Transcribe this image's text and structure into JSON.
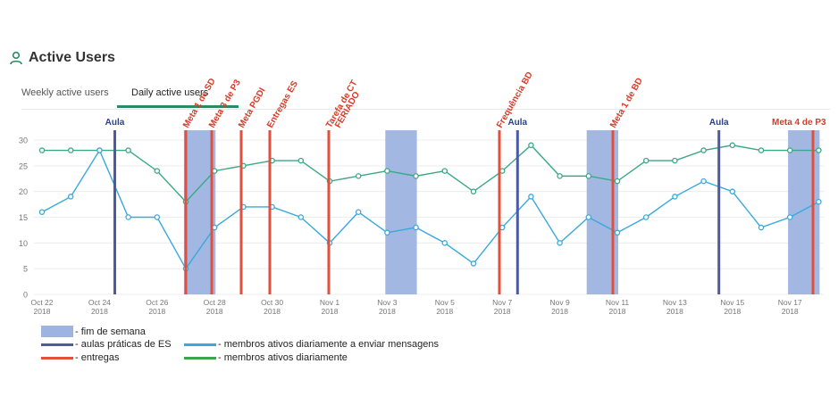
{
  "header": {
    "title": "Active Users",
    "icon": "user-icon"
  },
  "tabs": [
    {
      "label": "Weekly active users",
      "active": false
    },
    {
      "label": "Daily active users",
      "active": true
    }
  ],
  "colors": {
    "green": "#3aa886",
    "blue": "#39a8dc",
    "weekend": "#9db4e2",
    "aulas": "#4c5aa3",
    "entregas": "#e0503c",
    "aula_text": "#2b3f8c",
    "entrega_text": "#d93a28"
  },
  "legend": [
    {
      "label": "- fim de semana",
      "kind": "weekend"
    },
    {
      "label": "- aulas práticas de ES",
      "kind": "aulas"
    },
    {
      "label": "- entregas",
      "kind": "entregas"
    },
    {
      "label": "- membros ativos diariamente a enviar mensagens",
      "kind": "blue"
    },
    {
      "label": "- membros ativos diariamente",
      "kind": "green"
    }
  ],
  "chart_data": {
    "type": "line",
    "ylim": [
      0,
      30
    ],
    "yticks": [
      0,
      5,
      10,
      15,
      20,
      25,
      30
    ],
    "grid": true,
    "x_dates": [
      "Oct 22",
      "Oct 23",
      "Oct 24",
      "Oct 25",
      "Oct 26",
      "Oct 27",
      "Oct 28",
      "Oct 29",
      "Oct 30",
      "Oct 31",
      "Nov 1",
      "Nov 2",
      "Nov 3",
      "Nov 4",
      "Nov 5",
      "Nov 6",
      "Nov 7",
      "Nov 8",
      "Nov 9",
      "Nov 10",
      "Nov 11",
      "Nov 12",
      "Nov 13",
      "Nov 14",
      "Nov 15",
      "Nov 16",
      "Nov 17",
      "Nov 18"
    ],
    "x_ticks": [
      {
        "l1": "Oct 22",
        "l2": "2018"
      },
      {
        "l1": "Oct 24",
        "l2": "2018"
      },
      {
        "l1": "Oct 26",
        "l2": "2018"
      },
      {
        "l1": "Oct 28",
        "l2": "2018"
      },
      {
        "l1": "Oct 30",
        "l2": "2018"
      },
      {
        "l1": "Nov 1",
        "l2": "2018"
      },
      {
        "l1": "Nov 3",
        "l2": "2018"
      },
      {
        "l1": "Nov 5",
        "l2": "2018"
      },
      {
        "l1": "Nov 7",
        "l2": "2018"
      },
      {
        "l1": "Nov 9",
        "l2": "2018"
      },
      {
        "l1": "Nov 11",
        "l2": "2018"
      },
      {
        "l1": "Nov 13",
        "l2": "2018"
      },
      {
        "l1": "Nov 15",
        "l2": "2018"
      },
      {
        "l1": "Nov 17",
        "l2": "2018"
      }
    ],
    "series": [
      {
        "name": "membros ativos diariamente",
        "color": "green",
        "values": [
          28,
          28,
          28,
          28,
          24,
          18,
          24,
          25,
          26,
          26,
          22,
          23,
          24,
          23,
          24,
          20,
          24,
          29,
          23,
          23,
          22,
          26,
          26,
          28,
          29,
          28,
          28,
          28
        ]
      },
      {
        "name": "membros ativos diariamente a enviar mensagens",
        "color": "blue",
        "values": [
          16,
          19,
          28,
          15,
          15,
          5,
          13,
          17,
          17,
          15,
          10,
          16,
          12,
          13,
          10,
          6,
          13,
          19,
          10,
          15,
          12,
          15,
          19,
          22,
          20,
          13,
          15,
          18
        ]
      }
    ],
    "weekends": [
      {
        "start": "Oct 27",
        "end": "Oct 28"
      },
      {
        "start": "Nov 3",
        "end": "Nov 4"
      },
      {
        "start": "Nov 10",
        "end": "Nov 11"
      },
      {
        "start": "Nov 17",
        "end": "Nov 18"
      }
    ],
    "aulas": [
      {
        "date": "Oct 25",
        "label": "Aula"
      },
      {
        "date": "Nov 8",
        "label": "Aula"
      },
      {
        "date": "Nov 15",
        "label": "Aula"
      }
    ],
    "entregas": [
      {
        "date": "Oct 27",
        "label": "Meta 1 de SD"
      },
      {
        "date": "Oct 28",
        "label": "Meta 3 de P3"
      },
      {
        "date": "Oct 29",
        "label": "Meta PGDI"
      },
      {
        "date": "Oct 30",
        "label": "Entregas ES"
      },
      {
        "date": "Nov 1",
        "label": "Tarefa de CT"
      },
      {
        "date": "Nov 1",
        "label": "FERIADO"
      },
      {
        "date": "Nov 7",
        "label": "Frequência BD"
      },
      {
        "date": "Nov 11",
        "label": "Meta 1 de BD"
      },
      {
        "date": "Nov 18",
        "label": "Meta 4 de P3"
      }
    ]
  }
}
